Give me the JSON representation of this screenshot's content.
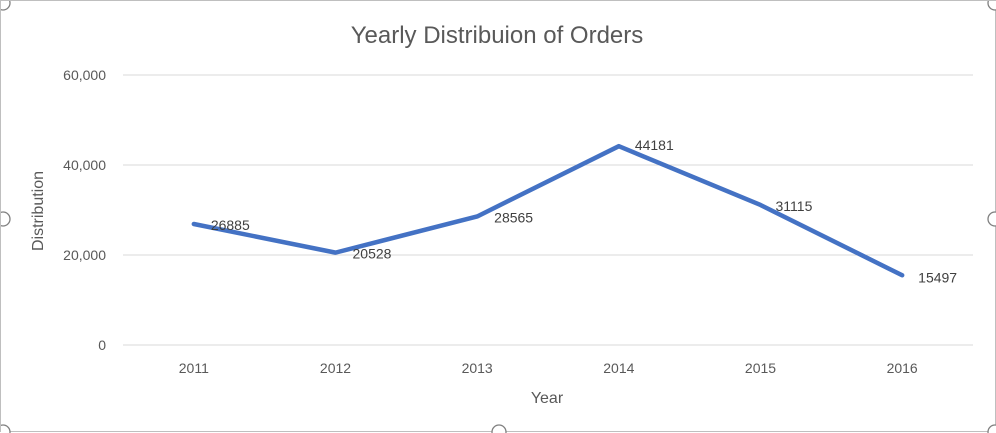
{
  "chart_data": {
    "type": "line",
    "title": "Yearly Distribuion of Orders",
    "xlabel": "Year",
    "ylabel": "Distribution",
    "categories": [
      "2011",
      "2012",
      "2013",
      "2014",
      "2015",
      "2016"
    ],
    "series": [
      {
        "values": [
          26885,
          20528,
          28565,
          44181,
          31115,
          15497
        ],
        "color": "#4472c4"
      }
    ],
    "data_labels": [
      "26885",
      "20528",
      "28565",
      "44181",
      "31115",
      "15497"
    ],
    "ylim": [
      0,
      60000
    ],
    "y_ticks": [
      0,
      20000,
      40000,
      60000
    ],
    "y_tick_labels": [
      "0",
      "20,000",
      "40,000",
      "60,000"
    ],
    "grid": true,
    "legend": "none"
  }
}
